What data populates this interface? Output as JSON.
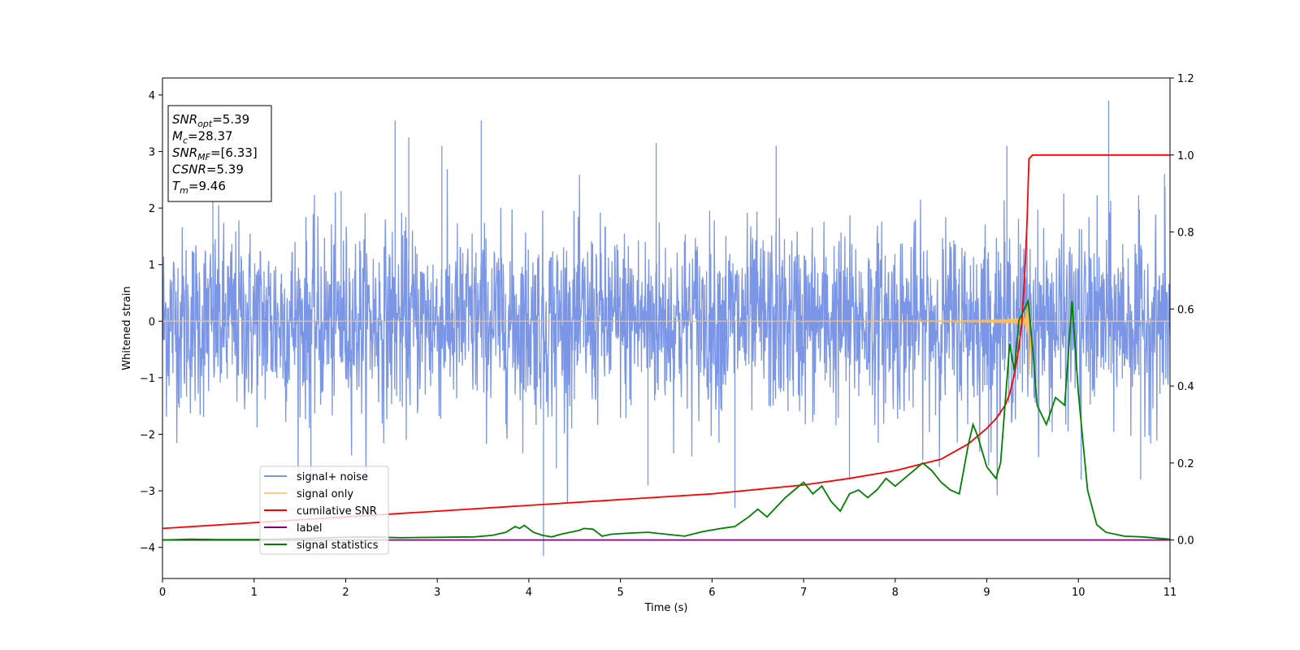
{
  "chart_data": {
    "type": "line",
    "xlabel": "Time (s)",
    "ylabel": "Whitened strain",
    "xlim": [
      0,
      11
    ],
    "ylim": [
      -4.55,
      4.3
    ],
    "ylim_right": [
      -0.1,
      1.2
    ],
    "grid": false,
    "legend_position": "lower-left",
    "x_ticks": [
      "0",
      "1",
      "2",
      "3",
      "4",
      "5",
      "6",
      "7",
      "8",
      "9",
      "10",
      "11"
    ],
    "y_ticks_left": [
      "4",
      "3",
      "2",
      "1",
      "0",
      "−1",
      "−2",
      "−3",
      "−4"
    ],
    "y_ticks_right": [
      "1.2",
      "1.0",
      "0.8",
      "0.6",
      "0.4",
      "0.2",
      "0.0"
    ],
    "annotation": {
      "lines": [
        {
          "base": "SNR",
          "sub": "opt",
          "value": "=5.39"
        },
        {
          "base": "M",
          "sub": "c",
          "value": "=28.37"
        },
        {
          "base": "SNR",
          "sub": "MF",
          "value": "=[6.33]"
        },
        {
          "base": "CSNR",
          "sub": "",
          "value": "=5.39"
        },
        {
          "base": "T",
          "sub": "m",
          "value": "=9.46"
        }
      ]
    },
    "series": [
      {
        "name": "signal+ noise",
        "color": "#7b96e6",
        "axis": "left",
        "kind": "noise",
        "std": 0.82,
        "spikes": [
          [
            0.55,
            2.35
          ],
          [
            1.62,
            -2.8
          ],
          [
            1.95,
            2.3
          ],
          [
            2.54,
            3.55
          ],
          [
            2.69,
            3.25
          ],
          [
            3.05,
            3.1
          ],
          [
            3.48,
            3.55
          ],
          [
            4.16,
            -4.15
          ],
          [
            4.3,
            -2.6
          ],
          [
            5.3,
            -2.9
          ],
          [
            5.39,
            3.15
          ],
          [
            6.25,
            -3.3
          ],
          [
            6.7,
            3.1
          ],
          [
            7.5,
            -2.8
          ],
          [
            9.02,
            -2.55
          ],
          [
            9.22,
            3.1
          ],
          [
            10.03,
            -2.8
          ],
          [
            10.33,
            3.9
          ],
          [
            10.68,
            -2.8
          ],
          [
            10.94,
            2.6
          ]
        ]
      },
      {
        "name": "signal only",
        "color": "#ffbf5a",
        "axis": "left",
        "kind": "chirp",
        "merger_time": 9.46,
        "peak": 0.95
      },
      {
        "name": "cumilative SNR",
        "color": "#ff0000",
        "axis": "right",
        "x": [
          0,
          1,
          2,
          3,
          4,
          5,
          6,
          7,
          7.5,
          8,
          8.5,
          8.8,
          9.0,
          9.1,
          9.2,
          9.25,
          9.3,
          9.35,
          9.38,
          9.4,
          9.42,
          9.44,
          9.46,
          9.5,
          11
        ],
        "y": [
          0.03,
          0.045,
          0.06,
          0.075,
          0.09,
          0.105,
          0.12,
          0.143,
          0.16,
          0.18,
          0.21,
          0.25,
          0.29,
          0.315,
          0.35,
          0.38,
          0.43,
          0.5,
          0.56,
          0.63,
          0.72,
          0.83,
          0.99,
          1.0,
          1.0
        ]
      },
      {
        "name": "label",
        "color": "#800080",
        "axis": "right",
        "x": [
          0,
          11
        ],
        "y": [
          0.0,
          0.0
        ]
      },
      {
        "name": "signal statistics",
        "color": "#008000",
        "axis": "right",
        "x": [
          0,
          0.3,
          0.6,
          1.0,
          1.4,
          1.8,
          2.2,
          2.6,
          3.0,
          3.4,
          3.6,
          3.75,
          3.85,
          3.9,
          3.95,
          4.05,
          4.15,
          4.25,
          4.35,
          4.45,
          4.55,
          4.6,
          4.7,
          4.8,
          4.9,
          5.1,
          5.3,
          5.5,
          5.7,
          5.9,
          6.1,
          6.25,
          6.4,
          6.5,
          6.6,
          6.7,
          6.8,
          6.9,
          7.0,
          7.1,
          7.2,
          7.3,
          7.4,
          7.5,
          7.6,
          7.7,
          7.8,
          7.9,
          8.0,
          8.1,
          8.2,
          8.3,
          8.4,
          8.5,
          8.6,
          8.7,
          8.8,
          8.85,
          8.9,
          8.95,
          9.0,
          9.1,
          9.15,
          9.25,
          9.3,
          9.35,
          9.45,
          9.5,
          9.55,
          9.65,
          9.75,
          9.85,
          9.93,
          10.0,
          10.1,
          10.2,
          10.3,
          10.5,
          10.7,
          11.0
        ],
        "y": [
          0.0,
          0.002,
          0.001,
          0.001,
          0.003,
          0.006,
          0.008,
          0.006,
          0.007,
          0.008,
          0.012,
          0.02,
          0.035,
          0.03,
          0.038,
          0.02,
          0.012,
          0.008,
          0.015,
          0.02,
          0.025,
          0.03,
          0.028,
          0.01,
          0.015,
          0.018,
          0.02,
          0.015,
          0.01,
          0.022,
          0.03,
          0.035,
          0.06,
          0.08,
          0.06,
          0.085,
          0.11,
          0.13,
          0.15,
          0.12,
          0.14,
          0.1,
          0.075,
          0.12,
          0.13,
          0.11,
          0.13,
          0.16,
          0.14,
          0.16,
          0.18,
          0.2,
          0.18,
          0.15,
          0.13,
          0.12,
          0.25,
          0.3,
          0.27,
          0.23,
          0.19,
          0.16,
          0.2,
          0.51,
          0.44,
          0.57,
          0.62,
          0.5,
          0.35,
          0.3,
          0.37,
          0.35,
          0.62,
          0.38,
          0.13,
          0.04,
          0.02,
          0.01,
          0.008,
          0.002
        ]
      }
    ]
  }
}
